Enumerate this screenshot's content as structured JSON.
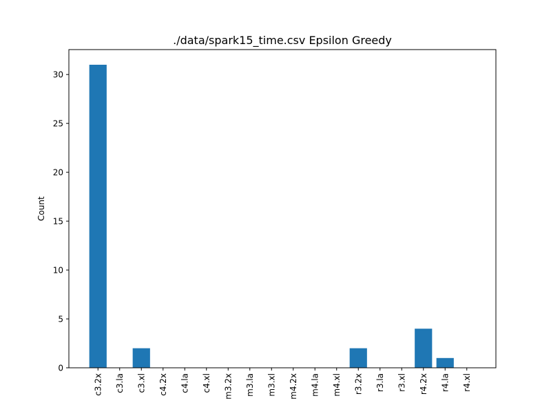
{
  "chart_data": {
    "type": "bar",
    "title": "./data/spark15_time.csv Epsilon Greedy",
    "xlabel": "",
    "ylabel": "Count",
    "categories": [
      "c3.2x",
      "c3.la",
      "c3.xl",
      "c4.2x",
      "c4.la",
      "c4.xl",
      "m3.2x",
      "m3.la",
      "m3.xl",
      "m4.2x",
      "m4.la",
      "m4.xl",
      "r3.2x",
      "r3.la",
      "r3.xl",
      "r4.2x",
      "r4.la",
      "r4.xl"
    ],
    "values": [
      31,
      0,
      2,
      0,
      0,
      0,
      0,
      0,
      0,
      0,
      0,
      0,
      2,
      0,
      0,
      4,
      1,
      0
    ],
    "ylim": [
      0,
      32.55
    ],
    "yticks": [
      0,
      5,
      10,
      15,
      20,
      25,
      30
    ],
    "grid": false,
    "bar_color": "#1f77b4"
  }
}
